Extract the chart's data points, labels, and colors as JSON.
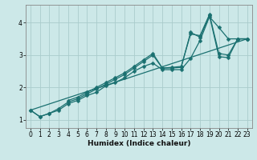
{
  "title": "",
  "xlabel": "Humidex (Indice chaleur)",
  "bg_color": "#cce8e8",
  "grid_color": "#aacccc",
  "line_color": "#1a7070",
  "xlim": [
    -0.5,
    23.5
  ],
  "ylim": [
    0.75,
    4.55
  ],
  "xticks": [
    0,
    1,
    2,
    3,
    4,
    5,
    6,
    7,
    8,
    9,
    10,
    11,
    12,
    13,
    14,
    15,
    16,
    17,
    18,
    19,
    20,
    21,
    22,
    23
  ],
  "yticks": [
    1,
    2,
    3,
    4
  ],
  "series": {
    "envelope_low": {
      "x": [
        0,
        1,
        2,
        3,
        4,
        5,
        6,
        7,
        8,
        9,
        10,
        11,
        12,
        13,
        14,
        15,
        16,
        17,
        18,
        19,
        20,
        21,
        22,
        23
      ],
      "y": [
        1.3,
        1.1,
        1.2,
        1.3,
        1.5,
        1.6,
        1.75,
        1.85,
        2.05,
        2.15,
        2.3,
        2.5,
        2.65,
        2.75,
        2.55,
        2.55,
        2.55,
        2.9,
        3.45,
        4.18,
        3.85,
        3.5,
        3.5,
        3.5
      ],
      "marker": true
    },
    "line_jagged1": {
      "x": [
        0,
        1,
        2,
        3,
        4,
        5,
        6,
        7,
        8,
        9,
        10,
        11,
        12,
        13,
        14,
        15,
        16,
        17,
        18,
        19,
        20,
        21,
        22,
        23
      ],
      "y": [
        1.3,
        1.1,
        1.2,
        1.35,
        1.55,
        1.65,
        1.8,
        1.95,
        2.1,
        2.25,
        2.4,
        2.6,
        2.8,
        3.0,
        2.6,
        2.6,
        2.62,
        3.7,
        3.55,
        4.22,
        2.95,
        2.92,
        3.5,
        3.5
      ],
      "marker": true
    },
    "line_jagged2": {
      "x": [
        4,
        5,
        6,
        7,
        8,
        9,
        10,
        11,
        12,
        13,
        14,
        15,
        16,
        17,
        18,
        19,
        20,
        21,
        22,
        23
      ],
      "y": [
        1.6,
        1.7,
        1.85,
        2.0,
        2.15,
        2.3,
        2.45,
        2.65,
        2.85,
        3.05,
        2.6,
        2.62,
        2.65,
        3.65,
        3.6,
        4.25,
        3.05,
        3.0,
        3.5,
        3.5
      ],
      "marker": true
    },
    "straight_line": {
      "x": [
        0,
        23
      ],
      "y": [
        1.3,
        3.5
      ],
      "marker": false
    }
  },
  "markersize": 2.5,
  "linewidth": 0.9
}
